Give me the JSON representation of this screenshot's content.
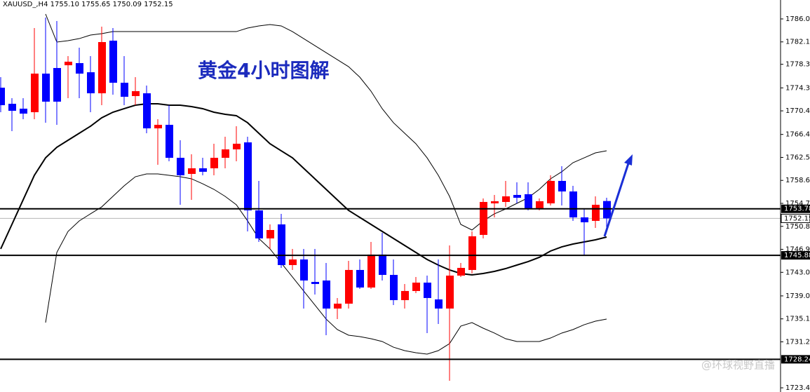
{
  "chart_data": {
    "type": "candlestick",
    "title": "XAUUSD_,H4  1755.10 1755.65 1750.09 1752.15",
    "annotation": "黄金4小时图解",
    "watermark": "@环球视野直播",
    "up_color": "#ff0000",
    "down_color": "#0000ff",
    "open": [
      1774.33,
      1771.6,
      1770.77,
      1770.17,
      1776.72,
      1777.67,
      1778.14,
      1778.5,
      1776.95,
      1773.38,
      1782.31,
      1775.17,
      1772.91,
      1773.38,
      1767.43,
      1768.03,
      1762.43,
      1759.7,
      1760.65,
      1760.65,
      1762.43,
      1763.86,
      1765.05,
      1753.51,
      1748.75,
      1751.13,
      1744.23,
      1745.18,
      1741.37,
      1741.61,
      1736.85,
      1737.68,
      1743.4,
      1740.42,
      1746.01,
      1742.56,
      1738.28,
      1739.83,
      1741.25,
      1738.4,
      1736.85,
      1742.44,
      1743.4,
      1749.35,
      1754.7,
      1754.94,
      1756.13,
      1756.25,
      1753.87,
      1754.7,
      1758.51,
      1756.72,
      1752.32,
      1751.73,
      1755.1
    ],
    "high": [
      1776.12,
      1772.55,
      1772.55,
      1784.45,
      1786.24,
      1785.64,
      1779.69,
      1781.12,
      1779.69,
      1784.69,
      1784.45,
      1779.69,
      1776.12,
      1774.69,
      1768.98,
      1771.36,
      1765.41,
      1763.03,
      1762.43,
      1764.82,
      1766.0,
      1767.79,
      1766.0,
      1758.51,
      1751.13,
      1752.92,
      1746.97,
      1746.97,
      1746.97,
      1744.59,
      1738.64,
      1744.94,
      1745.18,
      1748.16,
      1749.7,
      1745.18,
      1741.02,
      1742.21,
      1742.44,
      1745.18,
      1747.56,
      1744.59,
      1749.94,
      1755.53,
      1756.13,
      1758.51,
      1758.27,
      1758.27,
      1755.53,
      1759.46,
      1761.01,
      1757.68,
      1753.75,
      1755.89,
      1755.65
    ],
    "low": [
      1770.17,
      1766.96,
      1768.98,
      1768.98,
      1768.39,
      1768.03,
      1772.55,
      1772.55,
      1770.17,
      1771.36,
      1773.14,
      1771.36,
      1771.36,
      1766.6,
      1761.24,
      1761.84,
      1754.46,
      1755.3,
      1759.46,
      1759.46,
      1760.65,
      1761.84,
      1749.94,
      1748.16,
      1746.97,
      1743.75,
      1743.4,
      1736.85,
      1739.23,
      1732.33,
      1735.07,
      1736.85,
      1740.18,
      1740.18,
      1741.61,
      1737.45,
      1736.85,
      1739.47,
      1732.69,
      1734.23,
      1724.59,
      1742.21,
      1742.8,
      1748.75,
      1752.32,
      1754.1,
      1754.7,
      1753.51,
      1753.51,
      1754.34,
      1754.34,
      1751.73,
      1745.78,
      1750.54,
      1750.09
    ],
    "close": [
      1771.36,
      1770.41,
      1769.93,
      1776.72,
      1771.96,
      1771.96,
      1778.74,
      1776.72,
      1773.38,
      1782.07,
      1775.17,
      1772.79,
      1773.74,
      1767.43,
      1768.03,
      1762.43,
      1759.46,
      1760.65,
      1760.06,
      1762.43,
      1763.86,
      1764.82,
      1753.51,
      1748.75,
      1750.18,
      1744.23,
      1745.18,
      1741.61,
      1741.02,
      1736.85,
      1737.68,
      1743.4,
      1740.42,
      1746.01,
      1742.56,
      1738.28,
      1739.83,
      1741.25,
      1738.64,
      1736.85,
      1742.44,
      1743.75,
      1749.11,
      1754.94,
      1755.06,
      1755.89,
      1755.65,
      1753.75,
      1755.06,
      1758.51,
      1756.72,
      1752.32,
      1751.49,
      1754.46,
      1752.15
    ],
    "bands": {
      "middle": [
        1746.97,
        1751.13,
        1755.3,
        1759.46,
        1762.43,
        1764.22,
        1765.41,
        1766.6,
        1767.79,
        1769.22,
        1770.17,
        1770.77,
        1771.36,
        1771.6,
        1771.6,
        1771.36,
        1771.36,
        1771.12,
        1770.77,
        1770.17,
        1769.81,
        1769.58,
        1768.39,
        1766.6,
        1764.82,
        1763.62,
        1762.43,
        1760.65,
        1758.87,
        1757.08,
        1755.3,
        1753.51,
        1752.32,
        1751.13,
        1749.94,
        1748.75,
        1747.56,
        1746.37,
        1745.18,
        1744.23,
        1743.4,
        1742.8,
        1742.56,
        1742.8,
        1743.16,
        1743.63,
        1744.23,
        1744.82,
        1745.54,
        1746.61,
        1747.32,
        1747.8,
        1748.16,
        1748.51,
        1748.99
      ],
      "upper": [
        null,
        null,
        null,
        null,
        1786.83,
        1782.07,
        1782.31,
        1782.66,
        1783.26,
        1783.5,
        1783.85,
        1783.85,
        1783.85,
        1783.85,
        1783.85,
        1783.85,
        1783.85,
        1783.85,
        1783.85,
        1783.85,
        1783.85,
        1783.85,
        1784.45,
        1784.81,
        1785.05,
        1784.81,
        1783.85,
        1782.66,
        1781.47,
        1780.28,
        1779.09,
        1777.9,
        1776.12,
        1773.74,
        1770.77,
        1768.39,
        1766.6,
        1764.82,
        1762.43,
        1759.46,
        1755.89,
        1751.13,
        1750.18,
        1751.73,
        1752.92,
        1753.75,
        1754.7,
        1755.65,
        1757.08,
        1758.87,
        1760.06,
        1761.6,
        1762.43,
        1763.27,
        1763.62
      ],
      "lower": [
        null,
        null,
        null,
        null,
        1734.47,
        1746.37,
        1749.94,
        1751.73,
        1752.92,
        1754.1,
        1755.89,
        1757.68,
        1759.22,
        1759.7,
        1759.7,
        1759.46,
        1759.22,
        1758.87,
        1758.03,
        1757.08,
        1755.89,
        1754.46,
        1751.73,
        1748.75,
        1746.97,
        1744.59,
        1742.21,
        1739.83,
        1737.45,
        1735.07,
        1733.28,
        1732.33,
        1732.09,
        1731.73,
        1731.26,
        1730.3,
        1729.71,
        1729.35,
        1729.12,
        1729.71,
        1730.9,
        1733.87,
        1734.47,
        1733.52,
        1732.69,
        1731.73,
        1731.26,
        1731.26,
        1731.26,
        1731.85,
        1732.69,
        1733.28,
        1734.11,
        1734.71,
        1735.07
      ]
    },
    "levels": [
      {
        "value": 1753.78,
        "label": "1753.78"
      },
      {
        "value": 1745.88,
        "label": "1745.88"
      },
      {
        "value": 1728.24,
        "label": "1728.24"
      }
    ],
    "current_price": {
      "value": 1752.15,
      "label": "1752.15"
    },
    "ylim": [
      1722.69,
      1789.21
    ],
    "yticks": [
      {
        "value": 1786,
        "label": "1786.00"
      },
      {
        "value": 1782.1,
        "label": "1782.10"
      },
      {
        "value": 1778.3,
        "label": "1778.30"
      },
      {
        "value": 1774.3,
        "label": "1774.30"
      },
      {
        "value": 1770.4,
        "label": "1770.40"
      },
      {
        "value": 1766.4,
        "label": "1766.40"
      },
      {
        "value": 1762.5,
        "label": "1762.50"
      },
      {
        "value": 1758.6,
        "label": "1758.60"
      },
      {
        "value": 1754.7,
        "label": "1754.70"
      },
      {
        "value": 1750.8,
        "label": "1750.80"
      },
      {
        "value": 1746.9,
        "label": "1746.90"
      },
      {
        "value": 1743,
        "label": "1743.00"
      },
      {
        "value": 1739,
        "label": "1739.00"
      },
      {
        "value": 1735.1,
        "label": "1735.10"
      },
      {
        "value": 1731.2,
        "label": "1731.20"
      },
      {
        "value": 1723.4,
        "label": "1723.40"
      }
    ]
  }
}
